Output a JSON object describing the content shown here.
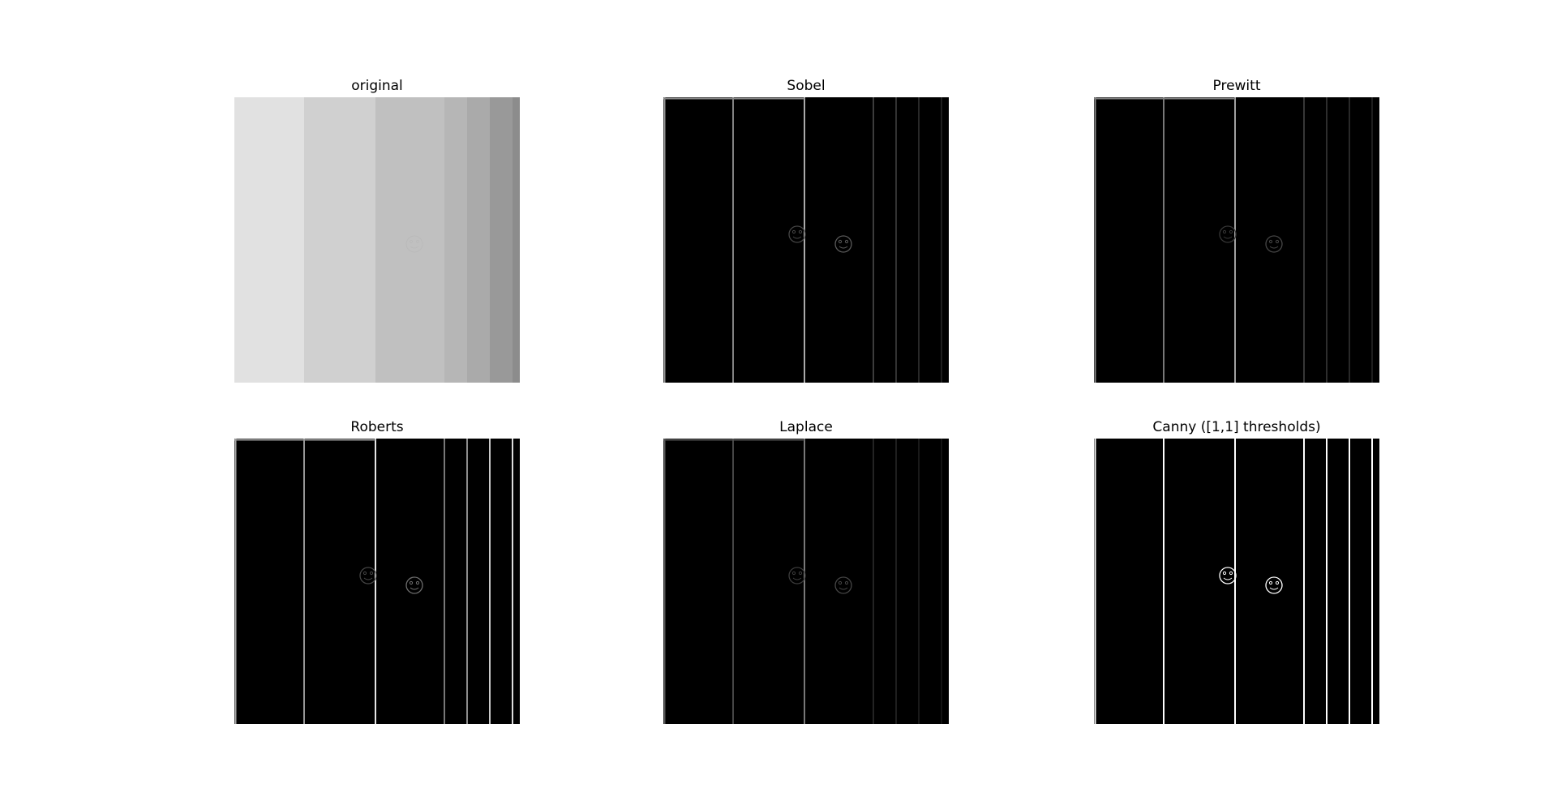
{
  "figure": {
    "background": "#ffffff",
    "panels": [
      {
        "id": "original",
        "title": "original",
        "mode": "gray",
        "stripe_gray_levels": [
          225,
          208,
          192,
          182,
          170,
          153,
          140
        ],
        "face_markers": [
          {
            "stripe": 2,
            "gray": 186
          }
        ]
      },
      {
        "id": "sobel",
        "title": "Sobel",
        "mode": "edges",
        "edge_gray_levels": [
          150,
          130,
          170,
          60,
          50,
          40,
          30
        ],
        "top_edge": true,
        "face_markers": [
          {
            "stripe": 1,
            "gray": 70
          },
          {
            "stripe": 2,
            "gray": 90
          }
        ]
      },
      {
        "id": "prewitt",
        "title": "Prewitt",
        "mode": "edges",
        "edge_gray_levels": [
          140,
          120,
          160,
          55,
          45,
          40,
          30
        ],
        "top_edge": true,
        "face_markers": [
          {
            "stripe": 1,
            "gray": 55
          },
          {
            "stripe": 2,
            "gray": 70
          }
        ]
      },
      {
        "id": "roberts",
        "title": "Roberts",
        "mode": "edges",
        "edge_gray_levels": [
          170,
          150,
          230,
          120,
          140,
          200,
          220
        ],
        "top_edge": true,
        "face_markers": [
          {
            "stripe": 1,
            "gray": 70
          },
          {
            "stripe": 2,
            "gray": 110
          }
        ]
      },
      {
        "id": "laplace",
        "title": "Laplace",
        "mode": "edges",
        "edge_gray_levels": [
          90,
          70,
          120,
          35,
          30,
          25,
          20
        ],
        "top_edge": true,
        "face_markers": [
          {
            "stripe": 1,
            "gray": 60
          },
          {
            "stripe": 2,
            "gray": 70
          }
        ]
      },
      {
        "id": "canny",
        "title": "Canny ([1,1] thresholds)",
        "mode": "edges",
        "edge_gray_levels": [
          255,
          255,
          255,
          255,
          255,
          255,
          255
        ],
        "top_edge": false,
        "face_markers": [
          {
            "stripe": 1,
            "gray": 255
          },
          {
            "stripe": 2,
            "gray": 255
          }
        ]
      }
    ]
  }
}
